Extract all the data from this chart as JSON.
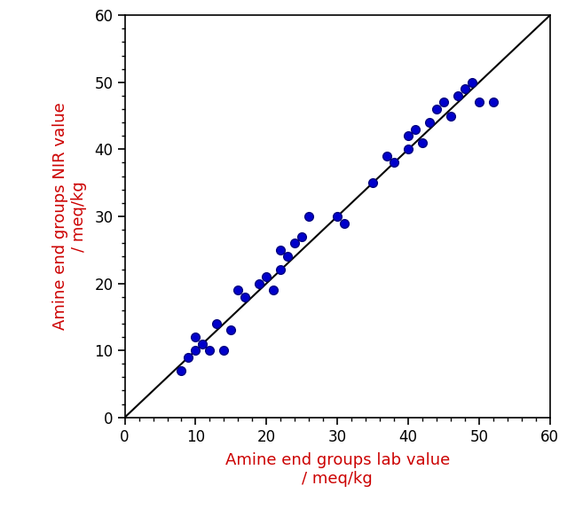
{
  "x_data": [
    8,
    9,
    10,
    10,
    11,
    12,
    13,
    14,
    15,
    16,
    17,
    19,
    20,
    21,
    22,
    22,
    23,
    24,
    25,
    26,
    30,
    31,
    35,
    37,
    38,
    40,
    40,
    41,
    42,
    43,
    44,
    45,
    46,
    47,
    48,
    49,
    50,
    52
  ],
  "y_data": [
    7,
    9,
    10,
    12,
    11,
    10,
    14,
    10,
    13,
    19,
    18,
    20,
    21,
    19,
    22,
    25,
    24,
    26,
    27,
    30,
    30,
    29,
    35,
    39,
    38,
    40,
    42,
    43,
    41,
    44,
    46,
    47,
    45,
    48,
    49,
    50,
    47,
    47
  ],
  "line_x": [
    0,
    60
  ],
  "line_y": [
    0,
    60
  ],
  "xlabel_line1": "Amine end groups lab value",
  "xlabel_line2": "/ meq/kg",
  "ylabel_line1": "Amine end groups NIR value",
  "ylabel_line2": "/ meq/kg",
  "xlim": [
    0,
    60
  ],
  "ylim": [
    0,
    60
  ],
  "xticks": [
    0,
    10,
    20,
    30,
    40,
    50,
    60
  ],
  "yticks": [
    0,
    10,
    20,
    30,
    40,
    50,
    60
  ],
  "marker_color": "#0000CC",
  "marker_edge_color": "#000080",
  "line_color": "#000000",
  "label_color": "#CC0000",
  "tick_color": "#000000",
  "marker_size": 7,
  "line_width": 1.5,
  "marker_edge_width": 1.0,
  "label_fontsize": 13,
  "tick_fontsize": 12,
  "figsize": [
    6.39,
    5.74
  ],
  "dpi": 100
}
